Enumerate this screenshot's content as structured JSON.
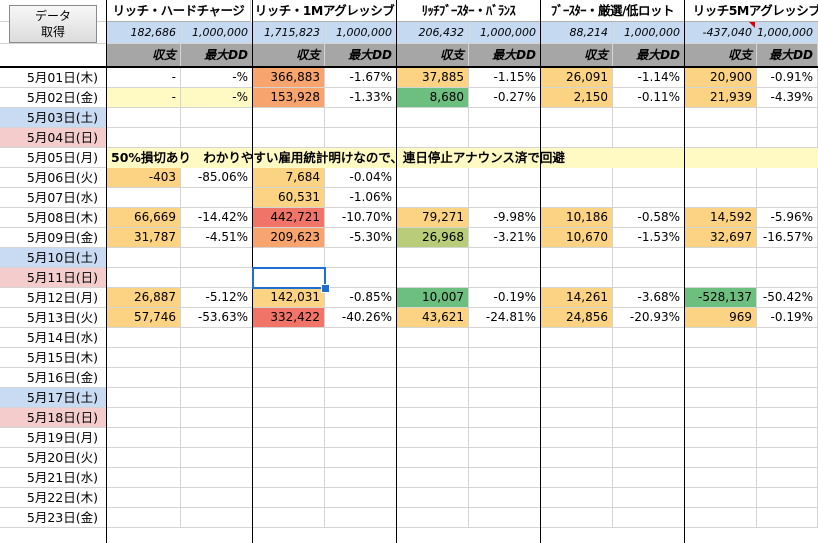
{
  "button": {
    "line1": "データ",
    "line2": "取得"
  },
  "strategies": [
    {
      "name": "リッチ・ハードチャージ",
      "total": "182,686",
      "capital": "1,000,000"
    },
    {
      "name": "リッチ・1Mアグレッシブ",
      "total": "1,715,823",
      "capital": "1,000,000"
    },
    {
      "name": "ﾘｯﾁﾌﾞｰｽﾀｰ・ﾊﾞﾗﾝｽ",
      "total": "206,432",
      "capital": "1,000,000"
    },
    {
      "name": "ﾌﾞｰｽﾀｰ・厳選/低ロット",
      "total": "88,214",
      "capital": "1,000,000"
    },
    {
      "name": "リッチ5Mアグレッシブ",
      "total": "-437,040",
      "capital": "1,000,000"
    }
  ],
  "labels": {
    "profit": "収支",
    "maxdd": "最大DD"
  },
  "note": "50%損切あり　わかりやすい雇用統計明けなので、連日停止アナウンス済で回避",
  "colors": {
    "weekend_sat": "#c9daf3",
    "weekend_sun": "#f4cccc",
    "header_total": "#c5d9f1",
    "header_label": "#a6a6a6",
    "note_bg": "#fff9c4",
    "selection": "#1f6fd1"
  },
  "rows": [
    {
      "date": "5月01日(木)",
      "cells": [
        [
          "-",
          "-%"
        ],
        [
          "366,883",
          "-1.67%"
        ],
        [
          "37,885",
          "-1.15%"
        ],
        [
          "26,091",
          "-1.14%"
        ],
        [
          "20,900",
          "-0.91%"
        ]
      ]
    },
    {
      "date": "5月02日(金)",
      "cells": [
        [
          "-",
          "-%"
        ],
        [
          "153,928",
          "-1.33%"
        ],
        [
          "8,680",
          "-0.27%"
        ],
        [
          "2,150",
          "-0.11%"
        ],
        [
          "21,939",
          "-4.39%"
        ]
      ]
    },
    {
      "date": "5月03日(土)",
      "cells": []
    },
    {
      "date": "5月04日(日)",
      "cells": []
    },
    {
      "date": "5月05日(月)",
      "cells": []
    },
    {
      "date": "5月06日(火)",
      "cells": [
        [
          "-403",
          "-85.06%"
        ],
        [
          "7,684",
          "-0.04%"
        ],
        [
          "",
          ""
        ],
        [
          "",
          ""
        ],
        [
          "",
          ""
        ]
      ]
    },
    {
      "date": "5月07日(水)",
      "cells": [
        [
          "",
          ""
        ],
        [
          "60,531",
          "-1.06%"
        ],
        [
          "",
          ""
        ],
        [
          "",
          ""
        ],
        [
          "",
          ""
        ]
      ]
    },
    {
      "date": "5月08日(木)",
      "cells": [
        [
          "66,669",
          "-14.42%"
        ],
        [
          "442,721",
          "-10.70%"
        ],
        [
          "79,271",
          "-9.98%"
        ],
        [
          "10,186",
          "-0.58%"
        ],
        [
          "14,592",
          "-5.96%"
        ]
      ]
    },
    {
      "date": "5月09日(金)",
      "cells": [
        [
          "31,787",
          "-4.51%"
        ],
        [
          "209,623",
          "-5.30%"
        ],
        [
          "26,968",
          "-3.21%"
        ],
        [
          "10,670",
          "-1.53%"
        ],
        [
          "32,697",
          "-16.57%"
        ]
      ]
    },
    {
      "date": "5月10日(土)",
      "cells": []
    },
    {
      "date": "5月11日(日)",
      "cells": []
    },
    {
      "date": "5月12日(月)",
      "cells": [
        [
          "26,887",
          "-5.12%"
        ],
        [
          "142,031",
          "-0.85%"
        ],
        [
          "10,007",
          "-0.19%"
        ],
        [
          "14,261",
          "-3.68%"
        ],
        [
          "-528,137",
          "-50.42%"
        ]
      ]
    },
    {
      "date": "5月13日(火)",
      "cells": [
        [
          "57,746",
          "-53.63%"
        ],
        [
          "332,422",
          "-40.26%"
        ],
        [
          "43,621",
          "-24.81%"
        ],
        [
          "24,856",
          "-20.93%"
        ],
        [
          "969",
          "-0.19%"
        ]
      ]
    },
    {
      "date": "5月14日(水)",
      "cells": []
    },
    {
      "date": "5月15日(木)",
      "cells": []
    },
    {
      "date": "5月16日(金)",
      "cells": []
    },
    {
      "date": "5月17日(土)",
      "cells": []
    },
    {
      "date": "5月18日(日)",
      "cells": []
    },
    {
      "date": "5月19日(月)",
      "cells": []
    },
    {
      "date": "5月20日(火)",
      "cells": []
    },
    {
      "date": "5月21日(水)",
      "cells": []
    },
    {
      "date": "5月22日(木)",
      "cells": []
    },
    {
      "date": "5月23日(金)",
      "cells": []
    }
  ],
  "profit_fills": [
    [
      "",
      "#f8a46e",
      "#fcd283",
      "#fcd283",
      "#fcd283"
    ],
    [
      "#fff9c4",
      "#f8a46e",
      "#6cbf7e",
      "#fcd283",
      "#fcd283"
    ],
    [],
    [],
    [],
    [
      "#fcd283",
      "#fcd283",
      "",
      "",
      ""
    ],
    [
      "",
      "#fcd283",
      "",
      "",
      ""
    ],
    [
      "#fcd283",
      "#f07467",
      "#fcd283",
      "#fcd283",
      "#fcd283"
    ],
    [
      "#fcd283",
      "#f8a46e",
      "#b9cc7a",
      "#fcd283",
      "#fcd283"
    ],
    [],
    [],
    [
      "#fcd283",
      "#fcd283",
      "#6cbf7e",
      "#fcd283",
      "#6cbf7e"
    ],
    [
      "#fcd283",
      "#f07467",
      "#fcd283",
      "#fcd283",
      "#fcd283"
    ]
  ]
}
